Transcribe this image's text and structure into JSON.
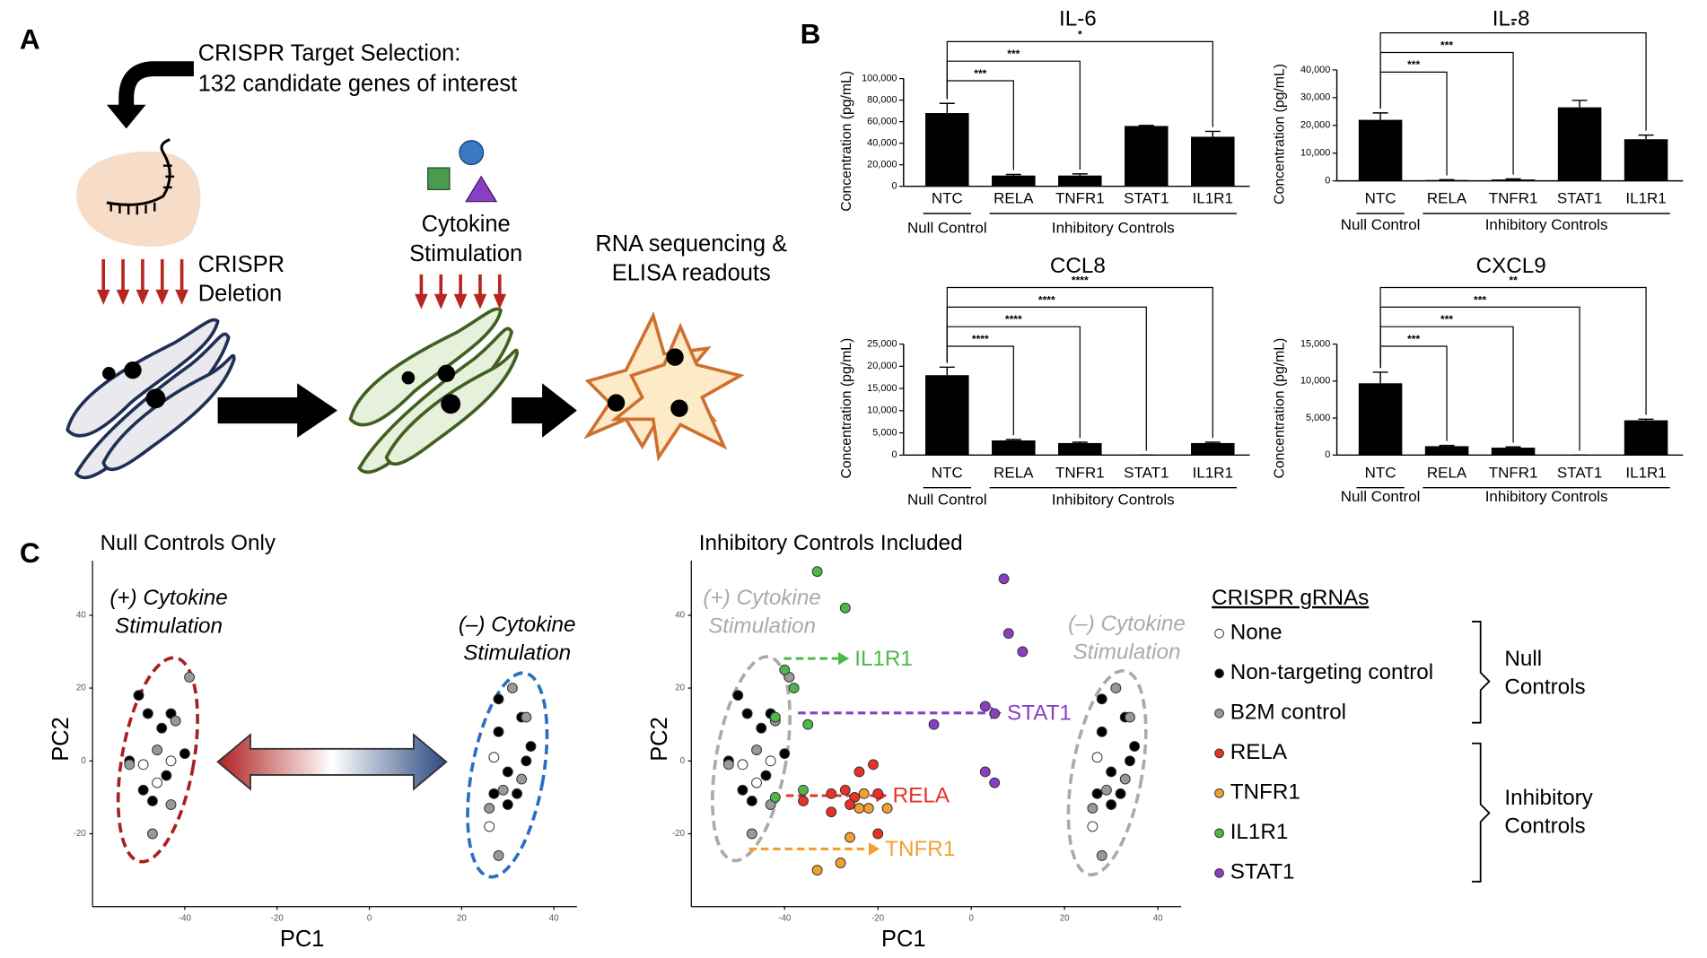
{
  "panel_labels": [
    "A",
    "B",
    "C"
  ],
  "panel_a": {
    "target_selection": [
      "CRISPR Target Selection:",
      "132 candidate genes of interest"
    ],
    "deletion": [
      "CRISPR",
      "Deletion"
    ],
    "stimulation": [
      "Cytokine",
      "Stimulation"
    ],
    "readouts": [
      "RNA sequencing &",
      "ELISA readouts"
    ]
  },
  "chart_data": [
    {
      "type": "bar",
      "title": "IL-6",
      "y_label": "Concentration (pg/mL)",
      "categories": [
        "NTC",
        "RELA",
        "TNFR1",
        "STAT1",
        "IL1R1"
      ],
      "values": [
        68000,
        10000,
        10000,
        56000,
        46000
      ],
      "errors": [
        9000,
        1000,
        1500,
        500,
        5000
      ],
      "color": "#000000",
      "ylim": [
        0,
        100000
      ],
      "yticks": [
        0,
        {
          "value": 20000,
          "label": "20,000"
        },
        {
          "value": 40000,
          "label": "40,000"
        },
        {
          "value": 60000,
          "label": "60,000"
        },
        {
          "value": 80000,
          "label": "80,000"
        },
        {
          "value": 100000,
          "label": "100,000"
        }
      ],
      "groups": [
        {
          "label": "Null Control",
          "categories": [
            "NTC"
          ]
        },
        {
          "label": "Inhibitory Controls",
          "categories": [
            "RELA",
            "TNFR1",
            "STAT1",
            "IL1R1"
          ]
        }
      ],
      "comparisons": [
        {
          "label": "***",
          "target": "RELA"
        },
        {
          "label": "***",
          "target": "TNFR1"
        },
        {
          "label": "*",
          "target": "IL1R1"
        }
      ]
    },
    {
      "type": "bar",
      "title": "IL-8",
      "y_label": "Concentration (pg/mL)",
      "categories": [
        "NTC",
        "RELA",
        "TNFR1",
        "STAT1",
        "IL1R1"
      ],
      "values": [
        22000,
        300,
        500,
        26500,
        15000
      ],
      "errors": [
        2500,
        100,
        200,
        2500,
        1500
      ],
      "color": "#000000",
      "ylim": [
        0,
        40000
      ],
      "yticks": [
        0,
        {
          "value": 10000,
          "label": "10,000"
        },
        {
          "value": 20000,
          "label": "20,000"
        },
        {
          "value": 30000,
          "label": "30,000"
        },
        {
          "value": 40000,
          "label": "40,000"
        }
      ],
      "groups": [
        {
          "label": "Null Control",
          "categories": [
            "NTC"
          ]
        },
        {
          "label": "Inhibitory Controls",
          "categories": [
            "RELA",
            "TNFR1",
            "STAT1",
            "IL1R1"
          ]
        }
      ],
      "comparisons": [
        {
          "label": "***",
          "target": "RELA"
        },
        {
          "label": "***",
          "target": "TNFR1"
        },
        {
          "label": "*",
          "target": "IL1R1"
        }
      ]
    },
    {
      "type": "bar",
      "title": "CCL8",
      "y_label": "Concentration (pg/mL)",
      "categories": [
        "NTC",
        "RELA",
        "TNFR1",
        "STAT1",
        "IL1R1"
      ],
      "values": [
        18000,
        3300,
        2700,
        0,
        2700
      ],
      "errors": [
        1800,
        200,
        200,
        0,
        200
      ],
      "color": "#000000",
      "ylim": [
        0,
        25000
      ],
      "yticks": [
        0,
        {
          "value": 5000,
          "label": "5,000"
        },
        {
          "value": 10000,
          "label": "10,000"
        },
        {
          "value": 15000,
          "label": "15,000"
        },
        {
          "value": 20000,
          "label": "20,000"
        },
        {
          "value": 25000,
          "label": "25,000"
        }
      ],
      "groups": [
        {
          "label": "Null Control",
          "categories": [
            "NTC"
          ]
        },
        {
          "label": "Inhibitory Controls",
          "categories": [
            "RELA",
            "TNFR1",
            "STAT1",
            "IL1R1"
          ]
        }
      ],
      "comparisons": [
        {
          "label": "****",
          "target": "RELA"
        },
        {
          "label": "****",
          "target": "TNFR1"
        },
        {
          "label": "****",
          "target": "STAT1"
        },
        {
          "label": "****",
          "target": "IL1R1"
        }
      ]
    },
    {
      "type": "bar",
      "title": "CXCL9",
      "y_label": "Concentration (pg/mL)",
      "categories": [
        "NTC",
        "RELA",
        "TNFR1",
        "STAT1",
        "IL1R1"
      ],
      "values": [
        9700,
        1200,
        1000,
        0,
        4700
      ],
      "errors": [
        1500,
        100,
        100,
        0,
        150
      ],
      "color": "#000000",
      "ylim": [
        0,
        15000
      ],
      "yticks": [
        0,
        {
          "value": 5000,
          "label": "5,000"
        },
        {
          "value": 10000,
          "label": "10,000"
        },
        {
          "value": 15000,
          "label": "15,000"
        }
      ],
      "groups": [
        {
          "label": "Null Control",
          "categories": [
            "NTC"
          ]
        },
        {
          "label": "Inhibitory Controls",
          "categories": [
            "RELA",
            "TNFR1",
            "STAT1",
            "IL1R1"
          ]
        }
      ],
      "comparisons": [
        {
          "label": "***",
          "target": "RELA"
        },
        {
          "label": "***",
          "target": "TNFR1"
        },
        {
          "label": "***",
          "target": "STAT1"
        },
        {
          "label": "**",
          "target": "IL1R1"
        }
      ]
    },
    {
      "type": "scatter",
      "title": "Null Controls Only",
      "x_label": "PC1",
      "y_label": "PC2",
      "xlim": [
        -60,
        45
      ],
      "ylim": [
        -40,
        55
      ],
      "xticks": [
        -40,
        -20,
        0,
        20,
        40
      ],
      "yticks": [
        -20,
        0,
        20,
        40
      ],
      "series": [
        {
          "color": "#ffffff",
          "x": [
            -49,
            -46,
            -43,
            26,
            27
          ],
          "y": [
            -1,
            -6,
            0,
            -18,
            1
          ]
        },
        {
          "color": "#000000",
          "x": [
            -48,
            -52,
            -49,
            -44,
            -43,
            -40,
            -45,
            -47,
            -50,
            28,
            33,
            35,
            30,
            32,
            28,
            27,
            34,
            30
          ],
          "y": [
            13,
            0,
            -8,
            -4,
            13,
            2,
            9,
            -11,
            18,
            17,
            12,
            4,
            -3,
            -9,
            8,
            -9,
            0,
            -12
          ]
        },
        {
          "color": "#999999",
          "x": [
            -39,
            -42,
            -52,
            -47,
            -43,
            -46,
            34,
            29,
            26,
            28,
            33,
            31
          ],
          "y": [
            23,
            11,
            -1,
            -20,
            -12,
            3,
            12,
            -8,
            -13,
            -26,
            -5,
            20
          ]
        }
      ],
      "annotations": [
        {
          "text": [
            "(+) Cytokine",
            "Stimulation"
          ]
        },
        {
          "text": [
            "(–) Cytokine",
            "Stimulation"
          ]
        }
      ]
    },
    {
      "type": "scatter",
      "title": "Inhibitory Controls Included",
      "x_label": "PC1",
      "y_label": "PC2",
      "xlim": [
        -60,
        45
      ],
      "ylim": [
        -40,
        55
      ],
      "xticks": [
        -40,
        -20,
        0,
        20,
        40
      ],
      "yticks": [
        -20,
        0,
        20,
        40
      ],
      "series": [
        {
          "name": "None",
          "color": "#ffffff",
          "x": [
            -49,
            -46,
            -43,
            26,
            27
          ],
          "y": [
            -1,
            -6,
            0,
            -18,
            1
          ]
        },
        {
          "name": "Non-targeting control",
          "color": "#000000",
          "x": [
            -48,
            -52,
            -49,
            -44,
            -43,
            -40,
            -45,
            -47,
            -50,
            28,
            33,
            35,
            30,
            32,
            28,
            27,
            34,
            30
          ],
          "y": [
            13,
            0,
            -8,
            -4,
            13,
            2,
            9,
            -11,
            18,
            17,
            12,
            4,
            -3,
            -9,
            8,
            -9,
            0,
            -12
          ]
        },
        {
          "name": "B2M control",
          "color": "#999999",
          "x": [
            -39,
            -42,
            -52,
            -47,
            -43,
            -46,
            34,
            29,
            26,
            28,
            33,
            31
          ],
          "y": [
            23,
            11,
            -1,
            -20,
            -12,
            3,
            12,
            -8,
            -13,
            -26,
            -5,
            20
          ]
        },
        {
          "name": "RELA",
          "color": "#e8312a",
          "x": [
            -36,
            -30,
            -25,
            -27,
            -20,
            -24,
            -21,
            -30,
            -20,
            -26
          ],
          "y": [
            -11,
            -9,
            -10,
            -8,
            -9,
            -3,
            -1,
            -14,
            -20,
            -12
          ]
        },
        {
          "name": "TNFR1",
          "color": "#f4a030",
          "x": [
            -33,
            -28,
            -23,
            -22,
            -24,
            -26,
            -18
          ],
          "y": [
            -30,
            -28,
            -9,
            -13,
            -13,
            -21,
            -13
          ]
        },
        {
          "name": "IL1R1",
          "color": "#4db848",
          "x": [
            -33,
            -27,
            -40,
            -38,
            -35,
            -42,
            -36,
            -42
          ],
          "y": [
            52,
            42,
            25,
            20,
            10,
            12,
            -8,
            -10
          ]
        },
        {
          "name": "STAT1",
          "color": "#8a3fc2",
          "x": [
            7,
            8,
            11,
            3,
            -8,
            5,
            3,
            5
          ],
          "y": [
            50,
            35,
            30,
            15,
            10,
            13,
            -3,
            -6
          ]
        }
      ],
      "annotations": [
        {
          "text": [
            "(+) Cytokine",
            "Stimulation"
          ]
        },
        {
          "text": [
            "(–) Cytokine",
            "Stimulation"
          ]
        }
      ],
      "arrows": [
        {
          "label": "IL1R1",
          "color": "#4db848"
        },
        {
          "label": "STAT1",
          "color": "#8a3fc2"
        },
        {
          "label": "RELA",
          "color": "#e8312a"
        },
        {
          "label": "TNFR1",
          "color": "#f4a030"
        }
      ]
    }
  ],
  "legend": {
    "title": "CRISPR gRNAs",
    "groups": [
      [
        "Null",
        "Controls"
      ],
      [
        "Inhibitory",
        "Controls"
      ]
    ]
  }
}
